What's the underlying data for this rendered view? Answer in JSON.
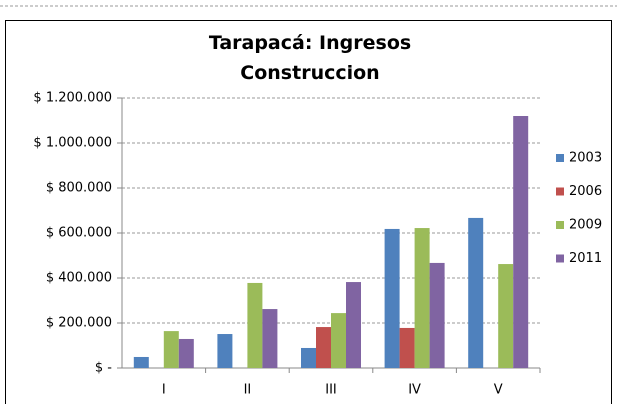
{
  "chart_data": {
    "type": "bar",
    "title": "Tarapacá: Ingresos Construccion",
    "categories": [
      "I",
      "II",
      "III",
      "IV",
      "V"
    ],
    "series": [
      {
        "name": "2003",
        "color": "#4f81bd",
        "values": [
          49000,
          151000,
          89000,
          618000,
          667000
        ]
      },
      {
        "name": "2006",
        "color": "#c0504d",
        "values": [
          null,
          null,
          182000,
          178000,
          null
        ]
      },
      {
        "name": "2009",
        "color": "#9bbb59",
        "values": [
          164000,
          378000,
          244000,
          622000,
          462000
        ]
      },
      {
        "name": "2011",
        "color": "#8064a2",
        "values": [
          129000,
          262000,
          382000,
          467000,
          1120000
        ]
      }
    ],
    "ylim": [
      0,
      1200000
    ],
    "yticks": [
      {
        "value": 0,
        "label": "$ -"
      },
      {
        "value": 200000,
        "label": "$ 200.000"
      },
      {
        "value": 400000,
        "label": "$ 400.000"
      },
      {
        "value": 600000,
        "label": "$ 600.000"
      },
      {
        "value": 800000,
        "label": "$ 800.000"
      },
      {
        "value": 1000000,
        "label": "$ 1.000.000"
      },
      {
        "value": 1200000,
        "label": "$ 1.200.000"
      }
    ],
    "grid": true,
    "legend": "right"
  }
}
